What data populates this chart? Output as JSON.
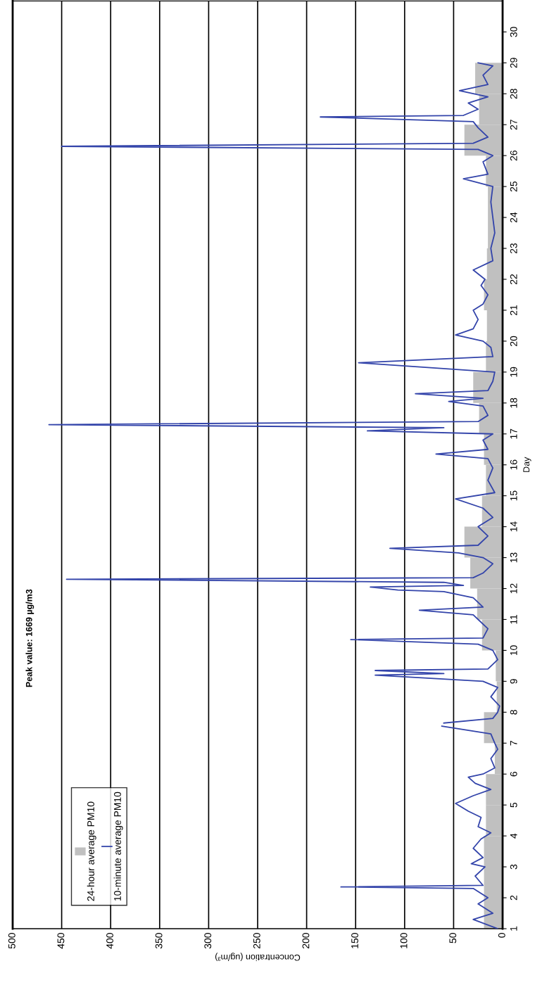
{
  "chart_data": {
    "type": "line",
    "orientation": "horizontal",
    "xlabel": "Concentration (ug/m³)",
    "ylabel": "Day",
    "xlim": [
      500,
      0
    ],
    "xticks": [
      0,
      50,
      100,
      150,
      200,
      250,
      300,
      350,
      400,
      450,
      500
    ],
    "ylim": [
      1,
      31
    ],
    "yticks": [
      1,
      2,
      3,
      4,
      5,
      6,
      7,
      8,
      9,
      10,
      11,
      12,
      13,
      14,
      15,
      16,
      17,
      18,
      19,
      20,
      21,
      22,
      23,
      24,
      25,
      26,
      27,
      28,
      29,
      30
    ],
    "grid": "x",
    "legend": "bottom left",
    "annotations": [
      "Peak value: 1669 µg/m3"
    ],
    "series": [
      {
        "name": "24-hour average PM10",
        "type": "bar",
        "color": "#c0c0c0",
        "x": [
          1.5,
          2.5,
          3.5,
          4.5,
          5.5,
          6.5,
          7.5,
          8.5,
          9.5,
          10.5,
          11.5,
          12.5,
          13.5,
          14.5,
          15.5,
          16.5,
          17.5,
          18.5,
          19.5,
          20.5,
          21.5,
          22.5,
          23.5,
          24.5,
          25.5,
          26.5,
          27.5,
          28.5
        ],
        "values": [
          19,
          19,
          19,
          17,
          17,
          8,
          19,
          6,
          7,
          21,
          26,
          33,
          39,
          21,
          17,
          19,
          24,
          30,
          17,
          16,
          19,
          16,
          15,
          15,
          17,
          39,
          24,
          28
        ]
      },
      {
        "name": "10-minute average PM10",
        "color": "#3344aa",
        "x": [
          1.0,
          1.3,
          1.5,
          1.8,
          2.0,
          2.3,
          2.35,
          2.4,
          2.7,
          3.0,
          3.1,
          3.3,
          3.6,
          3.9,
          4.1,
          4.3,
          4.6,
          4.8,
          5.05,
          5.3,
          5.5,
          5.7,
          5.9,
          6.0,
          6.2,
          6.5,
          6.8,
          7.0,
          7.3,
          7.55,
          7.6,
          7.65,
          7.8,
          8.0,
          8.2,
          8.5,
          8.8,
          9.0,
          9.2,
          9.25,
          9.35,
          9.4,
          9.7,
          10.0,
          10.2,
          10.35,
          10.4,
          10.7,
          11.0,
          11.15,
          11.3,
          11.4,
          11.7,
          11.9,
          11.95,
          12.05,
          12.1,
          12.2,
          12.3,
          12.35,
          12.5,
          12.8,
          13.0,
          13.15,
          13.3,
          13.4,
          13.7,
          14.0,
          14.3,
          14.6,
          14.9,
          15.1,
          15.5,
          15.9,
          16.2,
          16.35,
          16.5,
          16.8,
          17.0,
          17.1,
          17.2,
          17.3,
          17.4,
          17.6,
          17.9,
          18.05,
          18.15,
          18.3,
          18.4,
          18.7,
          19.0,
          19.3,
          19.5,
          19.8,
          20.0,
          20.2,
          20.4,
          20.7,
          21.0,
          21.2,
          21.5,
          21.8,
          22.0,
          22.3,
          22.6,
          23.0,
          23.5,
          24.0,
          24.5,
          25.0,
          25.25,
          25.4,
          25.8,
          26.0,
          26.2,
          26.3,
          26.4,
          26.6,
          26.9,
          27.1,
          27.25,
          27.3,
          27.5,
          27.7,
          27.9,
          28.1,
          28.3,
          28.6,
          28.9,
          29.0
        ],
        "values": [
          5,
          30,
          10,
          25,
          15,
          30,
          165,
          20,
          28,
          18,
          32,
          20,
          30,
          22,
          12,
          25,
          22,
          35,
          48,
          30,
          12,
          28,
          35,
          20,
          8,
          12,
          5,
          8,
          12,
          62,
          null,
          60,
          10,
          5,
          3,
          12,
          5,
          20,
          130,
          60,
          130,
          15,
          5,
          10,
          25,
          155,
          20,
          15,
          25,
          30,
          85,
          20,
          30,
          60,
          107,
          135,
          40,
          60,
          445,
          30,
          20,
          10,
          20,
          45,
          115,
          25,
          15,
          25,
          10,
          20,
          48,
          8,
          15,
          10,
          15,
          68,
          15,
          20,
          10,
          138,
          60,
          463,
          25,
          15,
          20,
          55,
          20,
          89,
          15,
          10,
          8,
          147,
          10,
          12,
          20,
          48,
          30,
          25,
          30,
          20,
          15,
          22,
          18,
          30,
          10,
          12,
          8,
          10,
          12,
          10,
          40,
          15,
          20,
          10,
          25,
          450,
          30,
          15,
          25,
          30,
          186,
          40,
          25,
          35,
          15,
          44,
          15,
          20,
          10,
          25
        ]
      }
    ]
  }
}
